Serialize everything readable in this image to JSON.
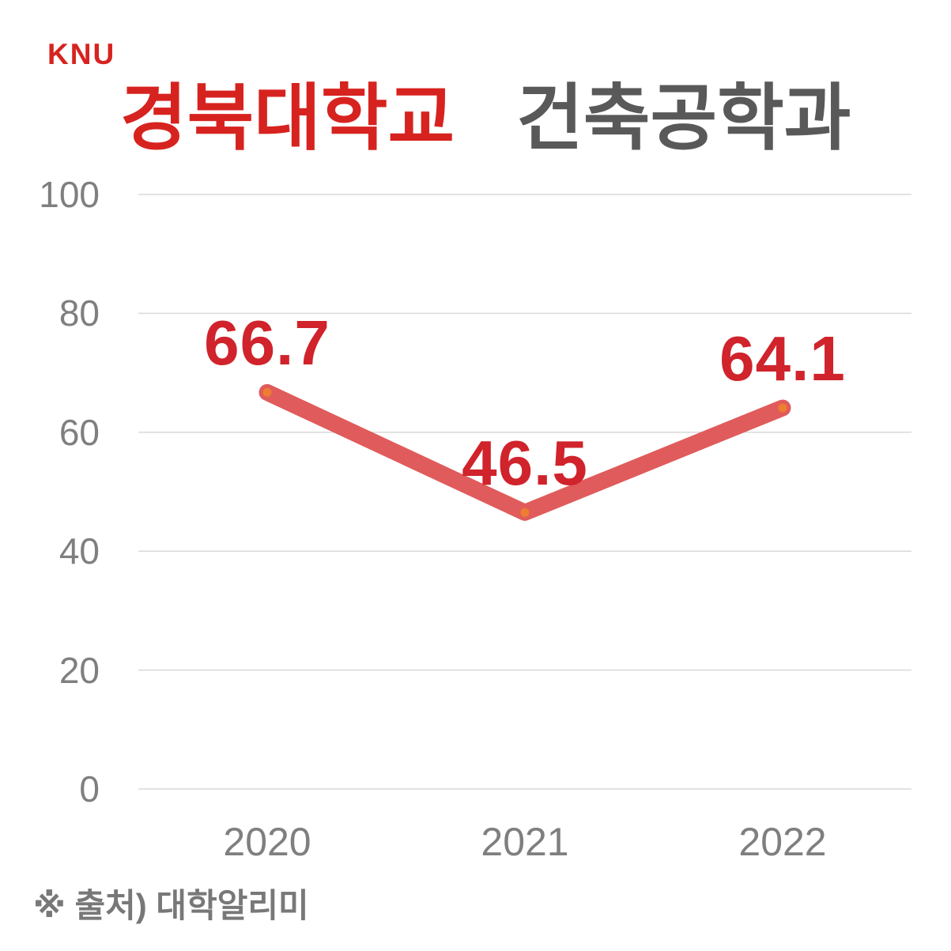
{
  "header": {
    "logo": "KNU",
    "title_university": "경북대학교",
    "title_department": "건축공학과"
  },
  "chart_data": {
    "type": "line",
    "title": "경북대학교 건축공학과",
    "categories": [
      "2020",
      "2021",
      "2022"
    ],
    "values": [
      66.7,
      46.5,
      64.1
    ],
    "labels": [
      "66.7",
      "46.5",
      "64.1"
    ],
    "yticks": [
      "100",
      "80",
      "60",
      "40",
      "20",
      "0"
    ],
    "ylim": [
      0,
      100
    ],
    "xlabel": "",
    "ylabel": "",
    "grid": true,
    "legend": "none"
  },
  "footer": {
    "source": "※ 출처) 대학알리미"
  },
  "colors": {
    "accent_red": "#d7231f",
    "label_red": "#d0232b",
    "title_gray": "#595959",
    "axis_gray": "#7f7f7f",
    "footer_gray": "#787878",
    "gridline": "#d9d9d9",
    "line": "#e05b5b",
    "marker_orange": "#ee7d31"
  }
}
